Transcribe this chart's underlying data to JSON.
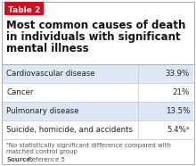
{
  "table_label": "Table 2",
  "title_lines": [
    "Most common causes of death",
    "in individuals with significant",
    "mental illness"
  ],
  "rows": [
    [
      "Cardiovascular disease",
      "33.9%"
    ],
    [
      "Cancer",
      "21%"
    ],
    [
      "Pulmonary disease",
      "13.5%"
    ],
    [
      "Suicide, homicide, and accidents",
      "5.4%ᵃ"
    ]
  ],
  "row_bg_colors": [
    "#dce8f5",
    "#ffffff",
    "#dce8f5",
    "#ffffff"
  ],
  "footnote_line1": "ᵃNo statistically significant difference compared with",
  "footnote_line2": "matched control group",
  "source_bold": "Source:",
  "source_rest": " Reference 5",
  "label_bg": "#cc1122",
  "label_text_color": "#ffffff",
  "title_color": "#111111",
  "body_text_color": "#222222",
  "footnote_color": "#555555",
  "border_color": "#b0b0b0",
  "divider_color": "#c0c8d0",
  "bg_color": "#ffffff",
  "title_fontsize": 8.5,
  "row_fontsize": 6.2,
  "footnote_fontsize": 5.0,
  "label_fontsize": 6.5
}
